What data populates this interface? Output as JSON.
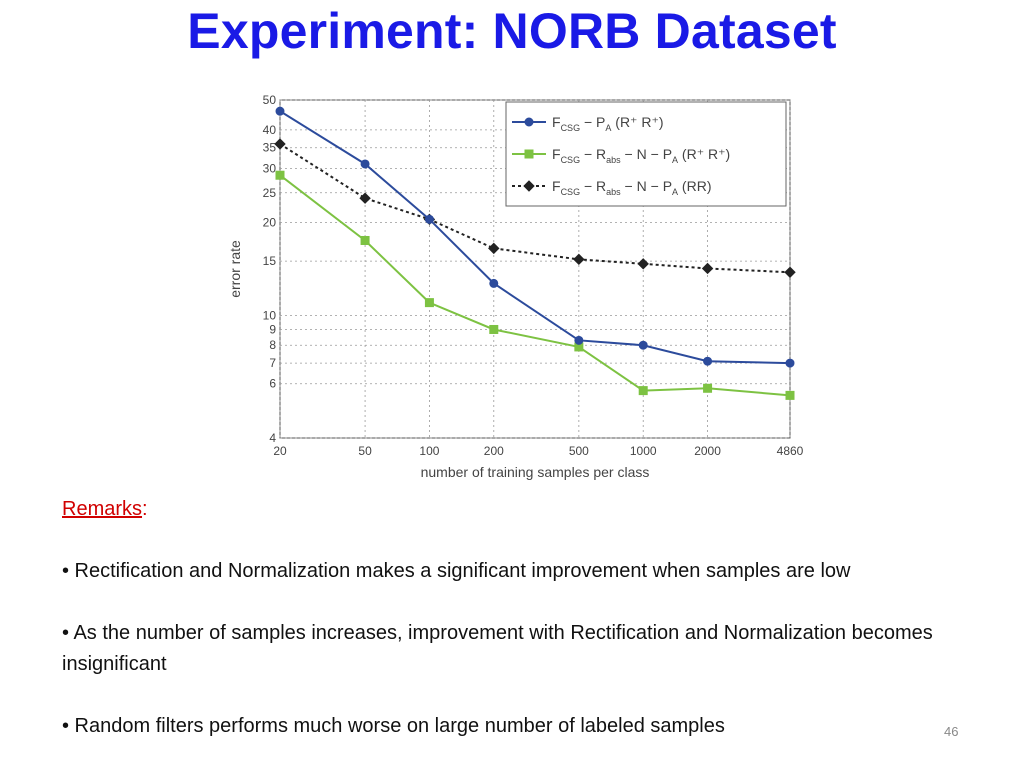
{
  "slide": {
    "title": "Experiment: NORB Dataset",
    "page_number": "46"
  },
  "remarks": {
    "heading": "Remarks",
    "colon": ":",
    "bullets": [
      "• Rectification and Normalization makes a significant improvement when samples are low",
      "• As the number of samples increases, improvement with Rectification and Normalization becomes insignificant",
      "• Random filters performs much worse on large number of labeled samples"
    ]
  },
  "chart_data": {
    "type": "line",
    "xlabel": "number of training samples per class",
    "ylabel": "error rate",
    "x_scale": "log",
    "y_scale": "log",
    "x": [
      20,
      50,
      100,
      200,
      500,
      1000,
      2000,
      4860
    ],
    "x_tick_labels": [
      "20",
      "50",
      "100",
      "200",
      "500",
      "1000",
      "2000",
      "4860"
    ],
    "y_ticks": [
      4,
      6,
      7,
      8,
      9,
      10,
      15,
      20,
      25,
      30,
      35,
      40,
      50
    ],
    "ylim": [
      4,
      50
    ],
    "grid": true,
    "legend_position": "top-right",
    "series": [
      {
        "name": "F_CSG − P_A (R⁺R⁺)",
        "name_parts": {
          "f": "F",
          "f_sub": "CSG",
          "mid": " − P",
          "mid_sub": "A",
          "tail": " (R⁺ R⁺)"
        },
        "color": "#2c4b9c",
        "marker": "circle",
        "dash": "solid",
        "values": [
          46,
          31,
          20.5,
          12.7,
          8.3,
          8.0,
          7.1,
          7.0
        ]
      },
      {
        "name": "F_CSG − R_abs − N − P_A (R⁺R⁺)",
        "name_parts": {
          "f": "F",
          "f_sub": "CSG",
          "mid": " − R",
          "mid_sub": "abs",
          "mid2": " − N − P",
          "mid2_sub": "A",
          "tail": " (R⁺ R⁺)"
        },
        "color": "#7dc242",
        "marker": "square",
        "dash": "solid",
        "values": [
          28.5,
          17.5,
          11.0,
          9.0,
          7.9,
          5.7,
          5.8,
          5.5
        ]
      },
      {
        "name": "F_CSG − R_abs − N − P_A (RR)",
        "name_parts": {
          "f": "F",
          "f_sub": "CSG",
          "mid": " − R",
          "mid_sub": "abs",
          "mid2": " − N − P",
          "mid2_sub": "A",
          "tail": " (RR)"
        },
        "color": "#222222",
        "marker": "diamond",
        "dash": "dotted",
        "values": [
          36,
          24,
          20.5,
          16.5,
          15.2,
          14.7,
          14.2,
          13.8
        ]
      }
    ]
  }
}
